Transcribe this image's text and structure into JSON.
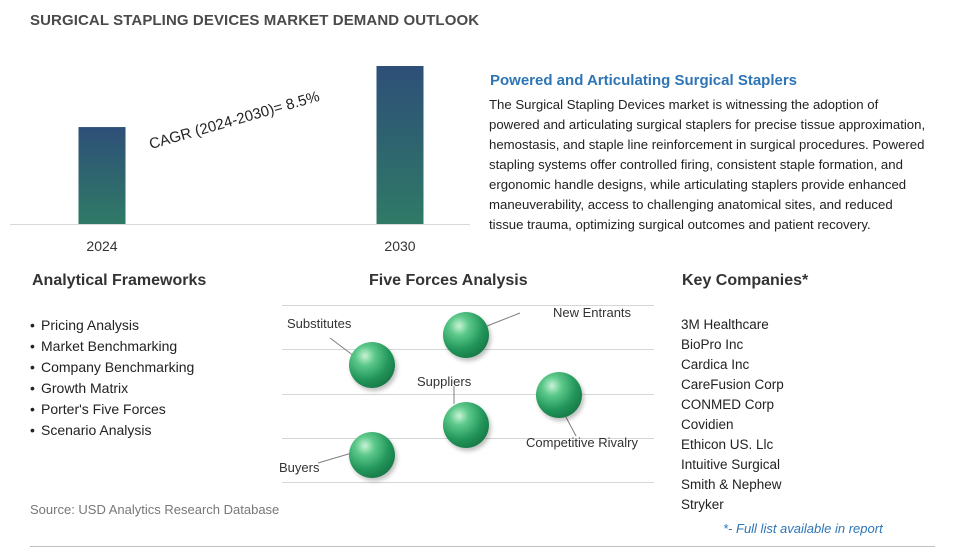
{
  "title": "SURGICAL STAPLING DEVICES MARKET DEMAND OUTLOOK",
  "chart_data": {
    "type": "bar",
    "categories": [
      "2024",
      "2030"
    ],
    "values": [
      1.0,
      1.63
    ],
    "annotation": "CAGR (2024-2030)=  8.5%",
    "grid": false
  },
  "colors": {
    "bar_top": "#2f6f6a",
    "bar_bottom": "#2e4f78",
    "accent": "#2e75b6",
    "sphere": "#2f9e5e"
  },
  "description": {
    "heading": "Powered and Articulating Surgical Staplers",
    "body": "The Surgical Stapling Devices market is witnessing the adoption of powered and articulating surgical staplers for precise tissue approximation, hemostasis, and staple line reinforcement in surgical procedures. Powered stapling systems offer controlled firing, consistent staple formation, and ergonomic handle designs, while articulating staplers provide enhanced maneuverability, access to challenging anatomical sites, and reduced tissue trauma, optimizing surgical outcomes and patient recovery."
  },
  "frameworks": {
    "heading": "Analytical Frameworks",
    "items": [
      "Pricing Analysis",
      "Market Benchmarking",
      "Company Benchmarking",
      "Growth Matrix",
      "Porter's Five Forces",
      "Scenario Analysis"
    ]
  },
  "five_forces": {
    "heading": "Five Forces Analysis",
    "labels": [
      "Substitutes",
      "New Entrants",
      "Suppliers",
      "Competitive Rivalry",
      "Buyers"
    ]
  },
  "companies": {
    "heading": "Key Companies*",
    "items": [
      "3M Healthcare",
      "BioPro Inc",
      "Cardica Inc",
      "CareFusion Corp",
      "CONMED Corp",
      "Covidien",
      "Ethicon US. Llc",
      "Intuitive Surgical",
      "Smith & Nephew",
      "Stryker"
    ],
    "footnote": "*- Full list available in report"
  },
  "source": "Source: USD Analytics Research Database"
}
